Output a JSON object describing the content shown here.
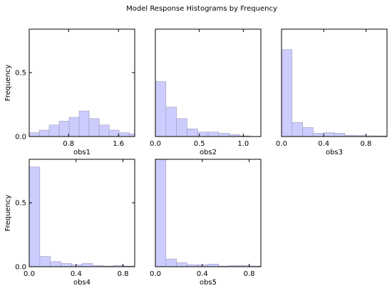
{
  "title": "Model Response Histograms by Frequency",
  "colors": {
    "bar_fill": "#ccccff",
    "bar_stroke": "#9a9ab8",
    "axis": "#000000"
  },
  "chart_data": [
    {
      "type": "bar",
      "xlabel": "obs1",
      "ylabel": "Frequency",
      "xlim": [
        0.17,
        1.86
      ],
      "ylim": [
        0,
        0.84
      ],
      "xticks": [
        0.8,
        1.6
      ],
      "yticks": [
        0.0,
        0.5
      ],
      "bin_edges": [
        0.17,
        0.33,
        0.49,
        0.65,
        0.81,
        0.97,
        1.13,
        1.29,
        1.45,
        1.61,
        1.77,
        1.86
      ],
      "values": [
        0.03,
        0.05,
        0.09,
        0.12,
        0.15,
        0.2,
        0.14,
        0.09,
        0.05,
        0.03,
        0.02
      ]
    },
    {
      "type": "bar",
      "xlabel": "obs2",
      "ylabel": "",
      "xlim": [
        0.0,
        1.2
      ],
      "ylim": [
        0,
        0.84
      ],
      "xticks": [
        0.0,
        0.5,
        1.0
      ],
      "yticks": [],
      "bin_edges": [
        0.0,
        0.12,
        0.24,
        0.36,
        0.48,
        0.6,
        0.72,
        0.84,
        0.96,
        1.08,
        1.2
      ],
      "values": [
        0.43,
        0.23,
        0.14,
        0.06,
        0.035,
        0.035,
        0.025,
        0.015,
        0.005,
        0.0
      ]
    },
    {
      "type": "bar",
      "xlabel": "obs3",
      "ylabel": "",
      "xlim": [
        0.0,
        1.0
      ],
      "ylim": [
        0,
        0.84
      ],
      "xticks": [
        0.0,
        0.4,
        0.8
      ],
      "yticks": [],
      "bin_edges": [
        0.0,
        0.1,
        0.2,
        0.3,
        0.4,
        0.5,
        0.6,
        0.7,
        0.8,
        0.9,
        1.0
      ],
      "values": [
        0.68,
        0.11,
        0.07,
        0.025,
        0.03,
        0.025,
        0.01,
        0.008,
        0.006,
        0.005
      ]
    },
    {
      "type": "bar",
      "xlabel": "obs4",
      "ylabel": "Frequency",
      "xlim": [
        0.0,
        0.9
      ],
      "ylim": [
        0,
        0.84
      ],
      "xticks": [
        0.0,
        0.4,
        0.8
      ],
      "yticks": [
        0.0,
        0.5
      ],
      "bin_edges": [
        0.0,
        0.09,
        0.18,
        0.27,
        0.36,
        0.45,
        0.54,
        0.63,
        0.72,
        0.81,
        0.9
      ],
      "values": [
        0.78,
        0.08,
        0.04,
        0.025,
        0.015,
        0.025,
        0.01,
        0.005,
        0.01,
        0.005
      ]
    },
    {
      "type": "bar",
      "xlabel": "obs5",
      "ylabel": "",
      "xlim": [
        0.0,
        0.9
      ],
      "ylim": [
        0,
        0.84
      ],
      "xticks": [
        0.0,
        0.4,
        0.8
      ],
      "yticks": [],
      "bin_edges": [
        0.0,
        0.09,
        0.18,
        0.27,
        0.36,
        0.45,
        0.54,
        0.63,
        0.72,
        0.81,
        0.9
      ],
      "values": [
        0.84,
        0.06,
        0.03,
        0.015,
        0.015,
        0.02,
        0.005,
        0.01,
        0.01,
        0.005
      ]
    }
  ]
}
